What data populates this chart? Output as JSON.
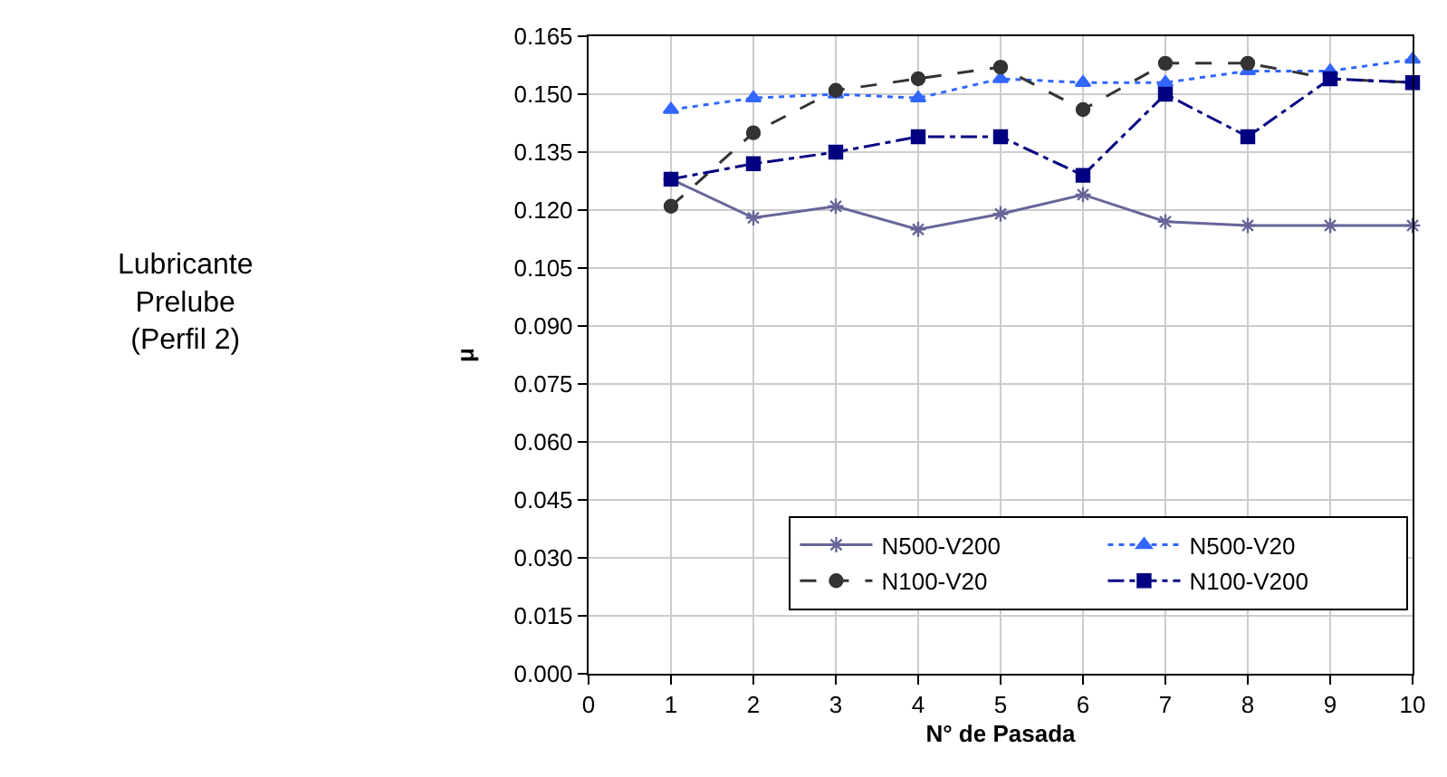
{
  "chart_data": {
    "type": "line",
    "xlabel": "N° de Pasada",
    "ylabel": "μ",
    "annotations": [
      "Lubricante\nPrelube\n(Perfil 2)"
    ],
    "x": [
      1,
      2,
      3,
      4,
      5,
      6,
      7,
      8,
      9,
      10
    ],
    "xlim": [
      0,
      10
    ],
    "xticks": [
      0,
      1,
      2,
      3,
      4,
      5,
      6,
      7,
      8,
      9,
      10
    ],
    "ylim": [
      0,
      0.165
    ],
    "yticks": [
      {
        "value": 0,
        "label": "0.000"
      },
      0.015,
      {
        "value": 0.03,
        "label": "0.030"
      },
      0.045,
      {
        "value": 0.06,
        "label": "0.060"
      },
      0.075,
      {
        "value": 0.09,
        "label": "0.090"
      },
      0.105,
      {
        "value": 0.12,
        "label": "0.120"
      },
      0.135,
      {
        "value": 0.15,
        "label": "0.150"
      },
      0.165
    ],
    "grid": true,
    "legend": "bottom right",
    "series": [
      {
        "name": "N500-V200",
        "color": "#666699",
        "marker": "cross",
        "line_style": "solid",
        "values": [
          0.128,
          0.118,
          0.121,
          0.115,
          0.119,
          0.124,
          0.117,
          0.116,
          0.116,
          0.116
        ]
      },
      {
        "name": "N500-V20",
        "color": "#3366ff",
        "marker": "triangle",
        "line_style": "dotted",
        "values": [
          0.146,
          0.149,
          0.15,
          0.149,
          0.154,
          0.153,
          0.153,
          0.156,
          0.156,
          0.159
        ]
      },
      {
        "name": "N100-V20",
        "color": "#333333",
        "marker": "circle",
        "line_style": "dashed",
        "values": [
          0.121,
          0.14,
          0.151,
          0.154,
          0.157,
          0.146,
          0.158,
          0.158,
          0.154,
          0.153
        ]
      },
      {
        "name": "N100-V200",
        "color": "#000080",
        "marker": "square",
        "line_style": "dashdot",
        "values": [
          0.128,
          0.132,
          0.135,
          0.139,
          0.139,
          0.129,
          0.15,
          0.139,
          0.154,
          0.153
        ]
      }
    ]
  }
}
